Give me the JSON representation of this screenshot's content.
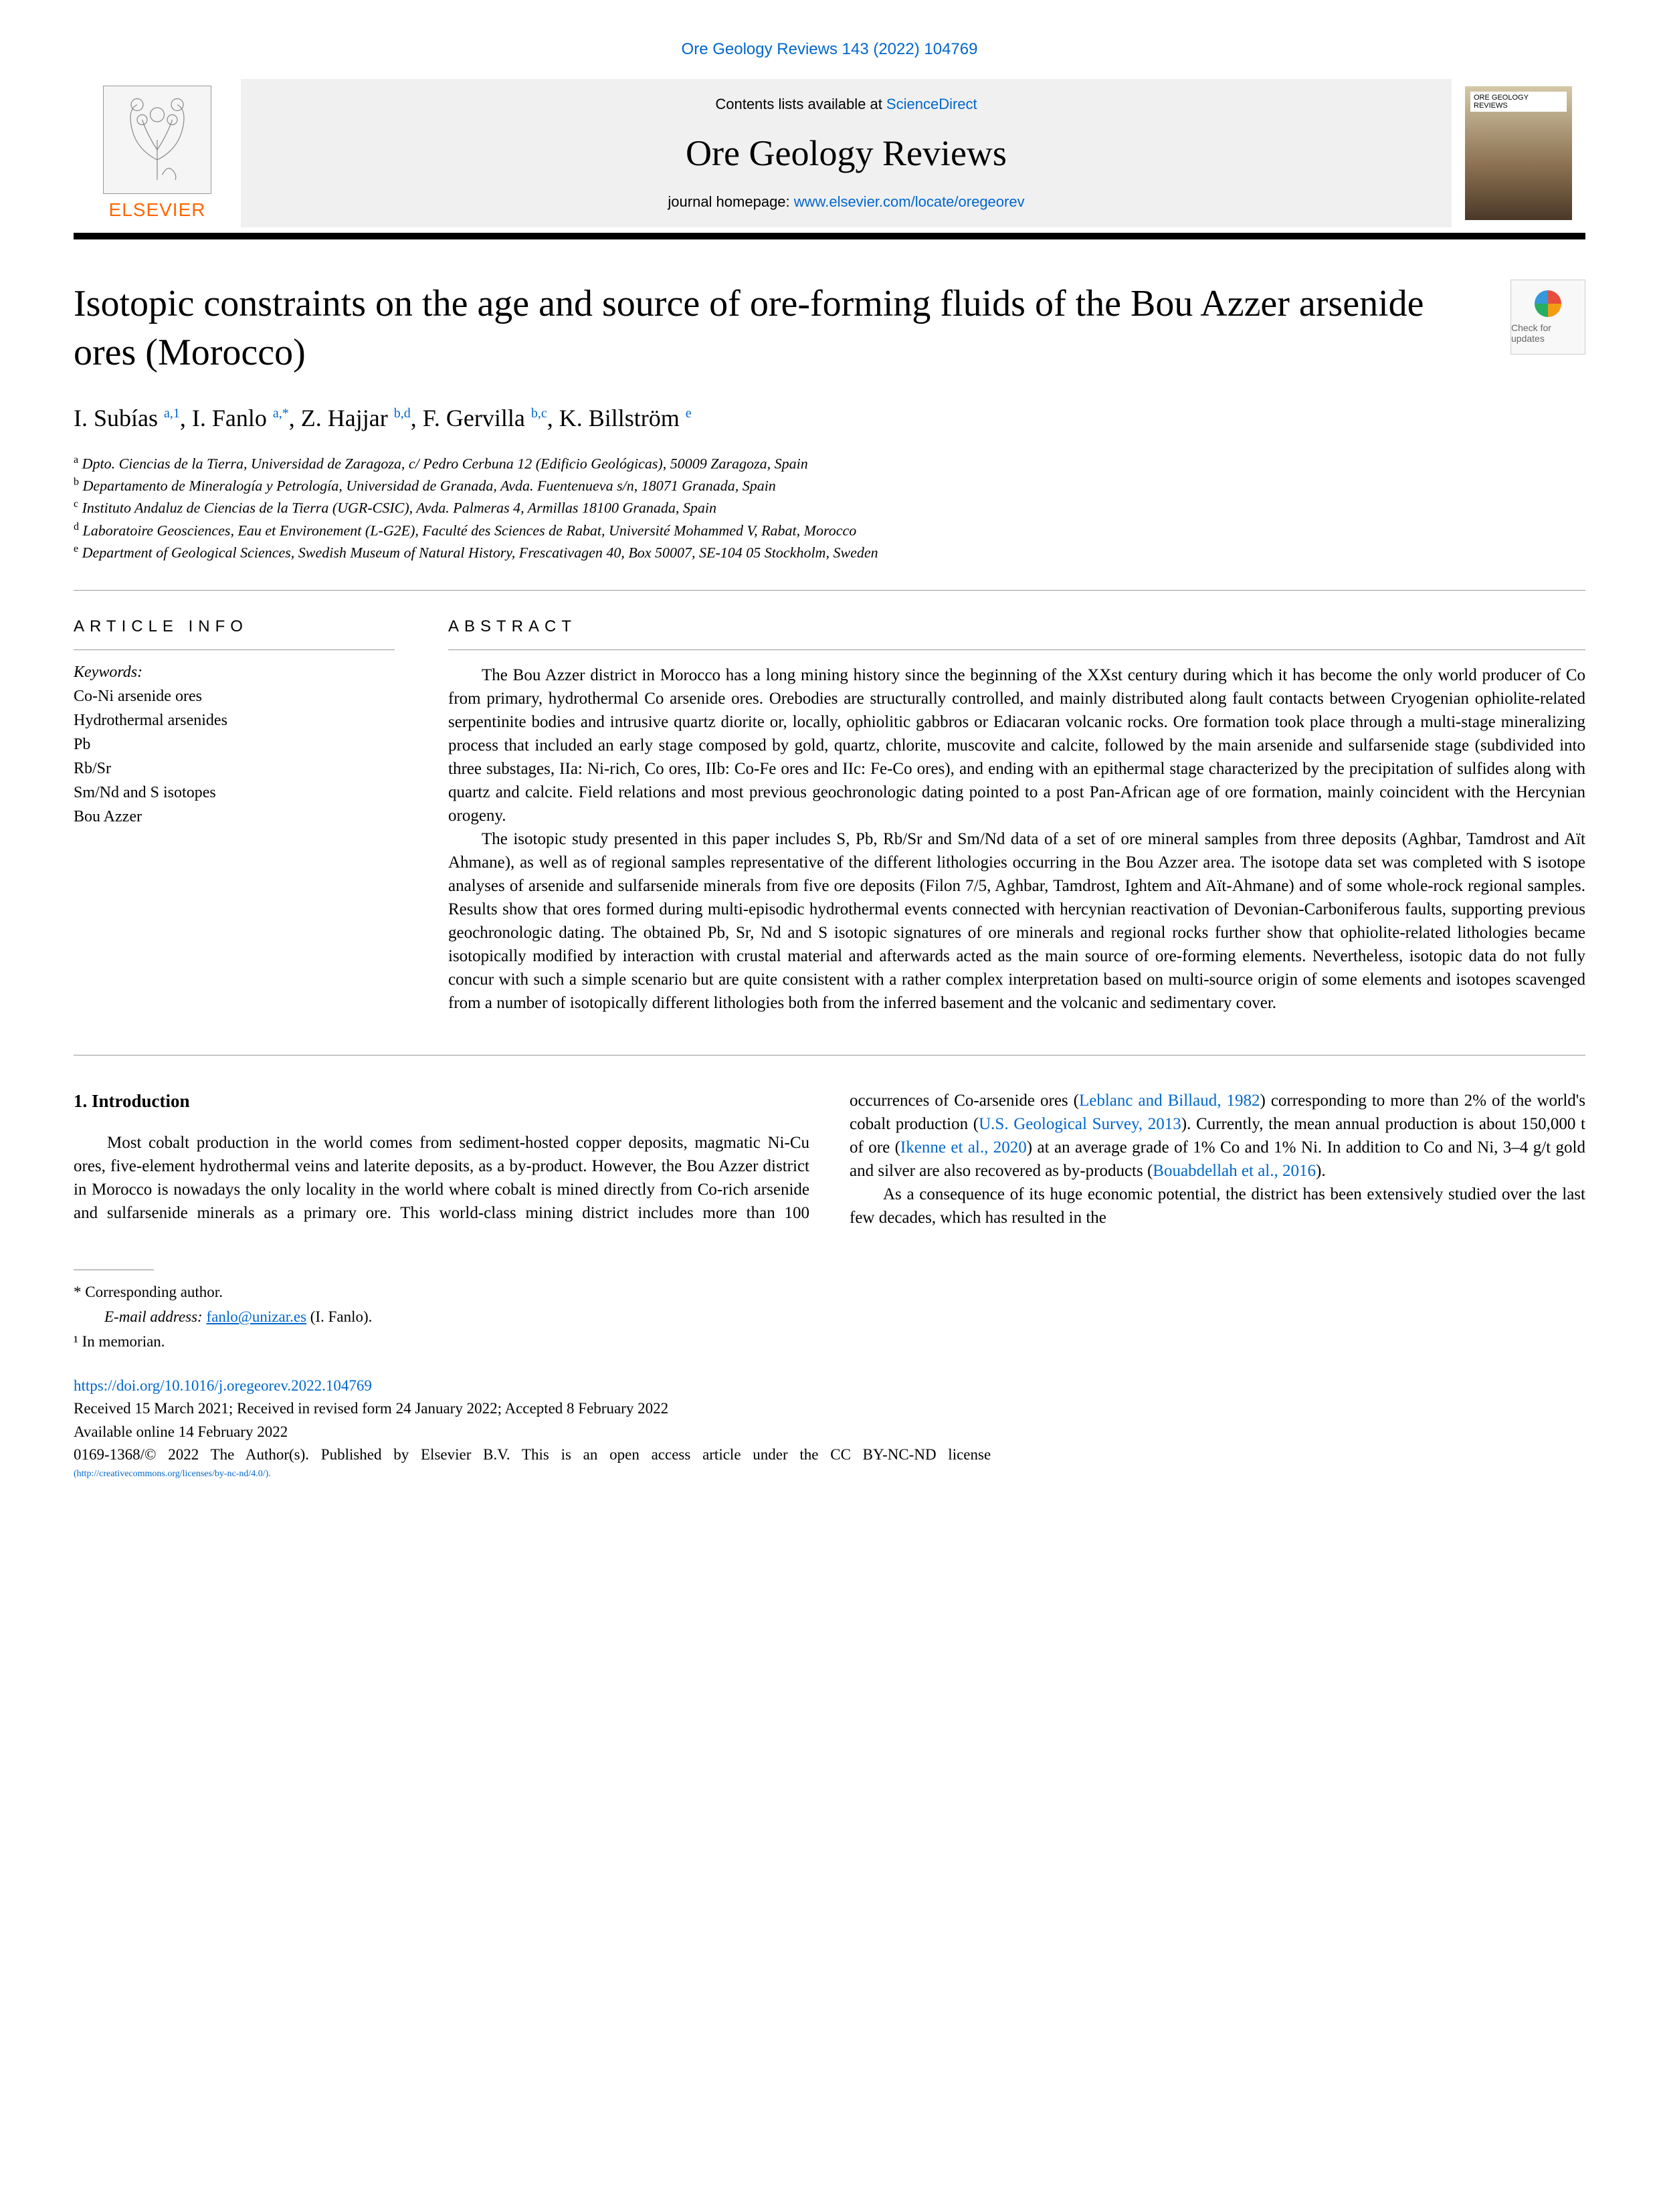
{
  "citation": "Ore Geology Reviews 143 (2022) 104769",
  "header": {
    "contents_prefix": "Contents lists available at ",
    "contents_link": "ScienceDirect",
    "journal": "Ore Geology Reviews",
    "homepage_prefix": "journal homepage: ",
    "homepage_link": "www.elsevier.com/locate/oregeorev",
    "publisher": "ELSEVIER",
    "cover_text": "ORE GEOLOGY REVIEWS"
  },
  "check_updates": "Check for updates",
  "title": "Isotopic constraints on the age and source of ore-forming fluids of the Bou Azzer arsenide ores (Morocco)",
  "authors_html": "I. Subías <sup>a,1</sup>, I. Fanlo <sup>a,*</sup>, Z. Hajjar <sup>b,d</sup>, F. Gervilla <sup>b,c</sup>, K. Billström <sup>e</sup>",
  "affiliations": [
    {
      "sup": "a",
      "text": "Dpto. Ciencias de la Tierra, Universidad de Zaragoza, c/ Pedro Cerbuna 12 (Edificio Geológicas), 50009 Zaragoza, Spain"
    },
    {
      "sup": "b",
      "text": "Departamento de Mineralogía y Petrología, Universidad de Granada, Avda. Fuentenueva s/n, 18071 Granada, Spain"
    },
    {
      "sup": "c",
      "text": "Instituto Andaluz de Ciencias de la Tierra (UGR-CSIC), Avda. Palmeras 4, Armillas 18100 Granada, Spain"
    },
    {
      "sup": "d",
      "text": "Laboratoire Geosciences, Eau et Environement (L-G2E), Faculté des Sciences de Rabat, Université Mohammed V, Rabat, Morocco"
    },
    {
      "sup": "e",
      "text": "Department of Geological Sciences, Swedish Museum of Natural History, Frescativagen 40, Box 50007, SE-104 05 Stockholm, Sweden"
    }
  ],
  "info": {
    "heading": "ARTICLE INFO",
    "keywords_label": "Keywords:",
    "keywords": [
      "Co-Ni arsenide ores",
      "Hydrothermal arsenides",
      "Pb",
      "Rb/Sr",
      "Sm/Nd and S isotopes",
      "Bou Azzer"
    ]
  },
  "abstract": {
    "heading": "ABSTRACT",
    "p1": "The Bou Azzer district in Morocco has a long mining history since the beginning of the XXst century during which it has become the only world producer of Co from primary, hydrothermal Co arsenide ores. Orebodies are structurally controlled, and mainly distributed along fault contacts between Cryogenian ophiolite-related serpentinite bodies and intrusive quartz diorite or, locally, ophiolitic gabbros or Ediacaran volcanic rocks. Ore formation took place through a multi-stage mineralizing process that included an early stage composed by gold, quartz, chlorite, muscovite and calcite, followed by the main arsenide and sulfarsenide stage (subdivided into three substages, IIa: Ni-rich, Co ores, IIb: Co-Fe ores and IIc: Fe-Co ores), and ending with an epithermal stage characterized by the precipitation of sulfides along with quartz and calcite. Field relations and most previous geochronologic dating pointed to a post Pan-African age of ore formation, mainly coincident with the Hercynian orogeny.",
    "p2": "The isotopic study presented in this paper includes S, Pb, Rb/Sr and Sm/Nd data of a set of ore mineral samples from three deposits (Aghbar, Tamdrost and Aït Ahmane), as well as of regional samples representative of the different lithologies occurring in the Bou Azzer area. The isotope data set was completed with S isotope analyses of arsenide and sulfarsenide minerals from five ore deposits (Filon 7/5, Aghbar, Tamdrost, Ightem and Aït-Ahmane) and of some whole-rock regional samples. Results show that ores formed during multi-episodic hydrothermal events connected with hercynian reactivation of Devonian-Carboniferous faults, supporting previous geochronologic dating. The obtained Pb, Sr, Nd and S isotopic signatures of ore minerals and regional rocks further show that ophiolite-related lithologies became isotopically modified by interaction with crustal material and afterwards acted as the main source of ore-forming elements. Nevertheless, isotopic data do not fully concur with such a simple scenario but are quite consistent with a rather complex interpretation based on multi-source origin of some elements and isotopes scavenged from a number of isotopically different lithologies both from the inferred basement and the volcanic and sedimentary cover."
  },
  "intro": {
    "heading": "1.  Introduction",
    "p1a": "Most cobalt production in the world comes from sediment-hosted copper deposits, magmatic Ni-Cu ores, five-element hydrothermal veins and laterite deposits, as a by-product. However, the Bou Azzer district in Morocco is nowadays the only locality in the world where cobalt is mined directly from Co-rich arsenide and sulfarsenide minerals as a primary ore. This world-class mining district includes more than ",
    "p1b": "100 occurrences of Co-arsenide ores (",
    "ref1": "Leblanc and Billaud, 1982",
    "p1c": ") corresponding to more than 2% of the world's cobalt production (",
    "ref2": "U.S. Geological Survey, 2013",
    "p1d": "). Currently, the mean annual production is about 150,000 t of ore (",
    "ref3": "Ikenne et al., 2020",
    "p1e": ") at an average grade of 1% Co and 1% Ni. In addition to Co and Ni, 3–4 g/t gold and silver are also recovered as by-products (",
    "ref4": "Bouabdellah et al., 2016",
    "p1f": ").",
    "p2": "As a consequence of its huge economic potential, the district has been extensively studied over the last few decades, which has resulted in the "
  },
  "footer": {
    "corr": "* Corresponding author.",
    "email_label": "E-mail address: ",
    "email": "fanlo@unizar.es",
    "email_suffix": " (I. Fanlo).",
    "memorian": "¹  In memorian.",
    "doi": "https://doi.org/10.1016/j.oregeorev.2022.104769",
    "received": "Received 15 March 2021; Received in revised form 24 January 2022; Accepted 8 February 2022",
    "available": "Available online 14 February 2022",
    "copyright": "0169-1368/© 2022 The Author(s). Published by Elsevier B.V. This is an open access article under the CC BY-NC-ND license",
    "license_url": "(http://creativecommons.org/licenses/by-nc-nd/4.0/)."
  }
}
